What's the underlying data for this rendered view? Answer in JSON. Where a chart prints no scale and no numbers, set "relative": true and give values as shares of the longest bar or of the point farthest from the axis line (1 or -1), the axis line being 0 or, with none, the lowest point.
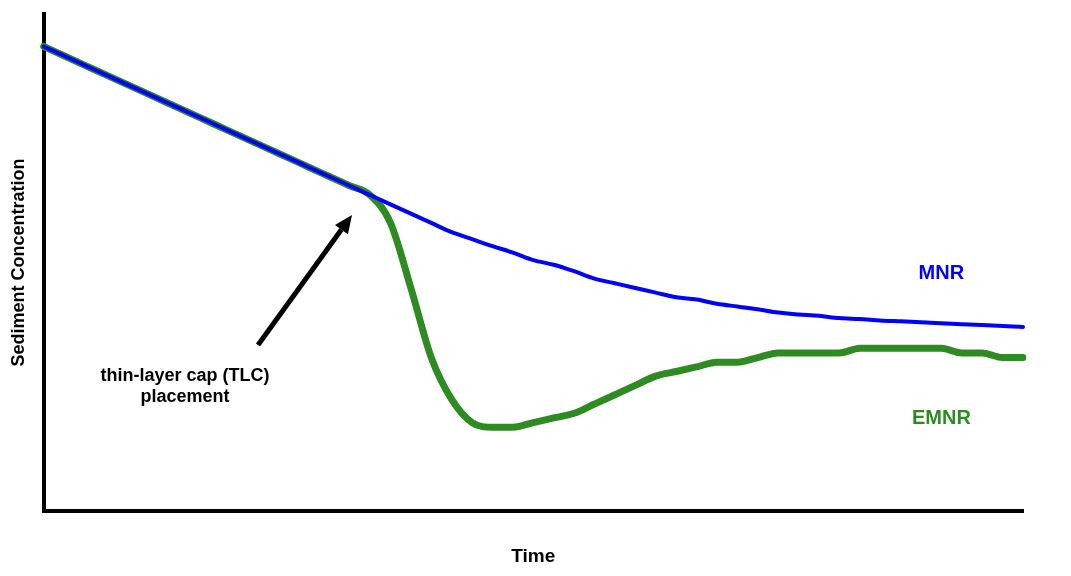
{
  "chart_data": {
    "type": "line",
    "relative": true,
    "xlabel": "Time",
    "ylabel": "Sediment Concentration",
    "grid": false,
    "legend": false,
    "marker": "none",
    "line_style": "solid",
    "categories": [
      null,
      null,
      null,
      null,
      null,
      null,
      null,
      null,
      null,
      null,
      null,
      null,
      null,
      null,
      null,
      null,
      null,
      null,
      null,
      null,
      null,
      null,
      null,
      null,
      null,
      null,
      null,
      null,
      null,
      null,
      null,
      null,
      null,
      null,
      null,
      null,
      null,
      null,
      null,
      null,
      null,
      null,
      null,
      null,
      null,
      null,
      null,
      null,
      null
    ],
    "series": [
      {
        "name": "MNR",
        "color": "#0000ff",
        "values": [
          1.0,
          0.98,
          0.96,
          0.94,
          0.92,
          0.9,
          0.88,
          0.86,
          0.84,
          0.82,
          0.8,
          0.78,
          0.76,
          0.74,
          0.72,
          0.7,
          0.68,
          0.66,
          0.64,
          0.62,
          0.6,
          0.585,
          0.57,
          0.556,
          0.54,
          0.53,
          0.516,
          0.5,
          0.49,
          0.48,
          0.47,
          0.46,
          0.455,
          0.446,
          0.44,
          0.434,
          0.427,
          0.423,
          0.42,
          0.415,
          0.413,
          0.41,
          0.408,
          0.406,
          0.404,
          0.402,
          0.4,
          0.398,
          0.396
        ]
      },
      {
        "name": "EMNR",
        "color": "#2e8b22",
        "values": [
          1.0,
          0.98,
          0.96,
          0.94,
          0.92,
          0.9,
          0.88,
          0.86,
          0.84,
          0.82,
          0.8,
          0.78,
          0.76,
          0.74,
          0.72,
          0.7,
          0.68,
          0.62,
          0.48,
          0.33,
          0.24,
          0.19,
          0.18,
          0.18,
          0.19,
          0.2,
          0.21,
          0.23,
          0.25,
          0.27,
          0.29,
          0.3,
          0.31,
          0.32,
          0.32,
          0.33,
          0.34,
          0.34,
          0.34,
          0.34,
          0.35,
          0.35,
          0.35,
          0.35,
          0.35,
          0.34,
          0.34,
          0.33,
          0.33
        ]
      }
    ],
    "annotations": [
      "thin-layer cap (TLC) placement"
    ]
  }
}
